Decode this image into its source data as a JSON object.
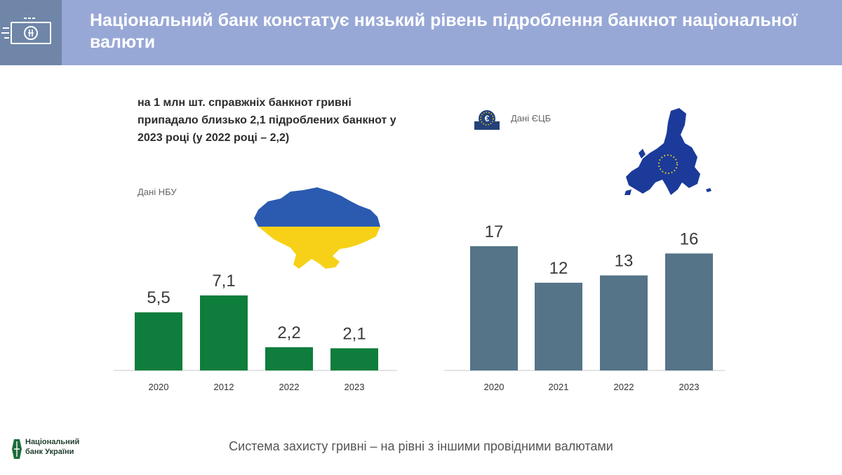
{
  "header": {
    "title": "Національний банк констатує низький рівень підроблення банкнот національної валюти"
  },
  "subtitle": "на 1 млн шт. справжніх банкнот гривні припадало близько 2,1 підроблених банкнот у 2023 році (у 2022 році – 2,2)",
  "sources": {
    "nbu": "Дані НБУ",
    "ecb": "Дані ЄЦБ"
  },
  "footer": {
    "text": "Система захисту гривні – на рівні з іншими провідними валютами",
    "logo_line1": "Національний",
    "logo_line2": "банк України"
  },
  "colors": {
    "header": "#98A8D6",
    "icon_box": "#6F86A8",
    "nbu_bar": "#0F7D3B",
    "ecb_bar": "#557487",
    "ua_blue": "#2B5BB0",
    "ua_yellow": "#F7D117",
    "eu_blue": "#1B3A9A",
    "eu_star": "#F7D117"
  },
  "icons": {
    "header": "banknote-icon",
    "ecb": "ecb-logo-icon"
  },
  "chart_data": [
    {
      "type": "bar",
      "categories": [
        "2020",
        "2012",
        "2022",
        "2023"
      ],
      "values": [
        5.5,
        7.1,
        2.2,
        2.1
      ],
      "labels": [
        "5,5",
        "7,1",
        "2,2",
        "2,1"
      ],
      "ylim": [
        0,
        8.5
      ]
    },
    {
      "type": "bar",
      "categories": [
        "2020",
        "2021",
        "2022",
        "2023"
      ],
      "values": [
        17,
        12,
        13,
        16
      ],
      "labels": [
        "17",
        "12",
        "13",
        "16"
      ],
      "ylim": [
        0,
        19
      ]
    }
  ]
}
